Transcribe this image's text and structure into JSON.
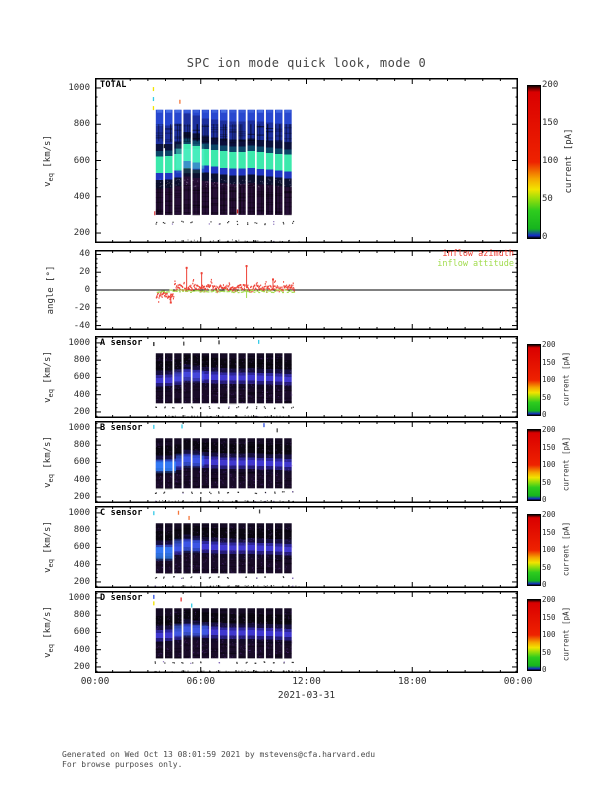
{
  "title": "SPC ion mode quick look, mode 0",
  "footer": {
    "line1": "Generated on Wed Oct 13 08:01:59 2021 by mstevens@cfa.harvard.edu",
    "line2": "For browse purposes only."
  },
  "chart_data": {
    "type": "heatmap",
    "title": "SPC ion mode quick look, mode 0",
    "x_axis": {
      "tick_labels": [
        "00:00",
        "06:00",
        "12:00",
        "18:00",
        "00:00"
      ],
      "tick_hours": [
        0,
        6,
        12,
        18,
        24
      ],
      "minor_every_h": 1,
      "range_hours": [
        0,
        24
      ],
      "date_label": "2021-03-31"
    },
    "data_span_hours": [
      3.45,
      11.25
    ],
    "n_blocks": 15,
    "colorbar": {
      "label": "current [pA]",
      "ticks": [
        0,
        50,
        100,
        150,
        200
      ],
      "range_pA": [
        0,
        200
      ],
      "stops": [
        [
          0,
          "#05030a"
        ],
        [
          0.015,
          "#1428c8"
        ],
        [
          0.06,
          "#16b41e"
        ],
        [
          0.18,
          "#2ecc1e"
        ],
        [
          0.26,
          "#9ade0a"
        ],
        [
          0.32,
          "#f2e400"
        ],
        [
          0.39,
          "#f5a800"
        ],
        [
          0.45,
          "#f06000"
        ],
        [
          0.5,
          "#ee2200"
        ],
        [
          0.96,
          "#da0000"
        ],
        [
          0.985,
          "#6a0000"
        ],
        [
          1,
          "#1a0000"
        ]
      ]
    },
    "panels": [
      {
        "id": "total",
        "label": "TOTAL",
        "kind": "spectro",
        "ylabel": {
          "pre": "v",
          "sub": "eq",
          "post": " [km/s]"
        },
        "ylim": [
          145,
          1055
        ],
        "yticks": [
          200,
          400,
          600,
          800,
          1000
        ],
        "minor_step": 50,
        "v_extent": [
          300,
          880
        ],
        "bands": [
          [
            880,
            800,
            "#2747cf"
          ],
          [
            800,
            700,
            "#1c2f9e"
          ],
          [
            700,
            662,
            "#0a103c"
          ],
          [
            662,
            632,
            "#0c4668"
          ],
          [
            632,
            540,
            "#3ce9ac"
          ],
          [
            540,
            502,
            "#2136c2"
          ],
          [
            502,
            455,
            "#0c1030"
          ],
          [
            455,
            300,
            "#260e36"
          ]
        ],
        "base_center_v": 570,
        "block_center_v": [
          560,
          562,
          575,
          628,
          618,
          602,
          596,
          590,
          586,
          586,
          590,
          584,
          580,
          575,
          570
        ],
        "hotspots": [
          {
            "t": [
              4.6,
              6.2
            ],
            "v": [
              555,
              665
            ],
            "color": "#55f2cf",
            "alpha": 0.4
          }
        ],
        "stray_marks": [
          {
            "t": 3.28,
            "v": 1005,
            "c": "#f2e400"
          },
          {
            "t": 3.28,
            "v": 950,
            "c": "#35cbe8"
          },
          {
            "t": 3.28,
            "v": 900,
            "c": "#f2e400"
          },
          {
            "t": 4.78,
            "v": 935,
            "c": "#f4763a"
          },
          {
            "t": 3.9,
            "v": 690,
            "c": "#222222"
          },
          {
            "t": 3.35,
            "v": 320,
            "c": "#e05050"
          },
          {
            "t": 8.05,
            "v": 330,
            "c": "#cc2222"
          }
        ],
        "noise": "total"
      },
      {
        "id": "angle",
        "label": "",
        "kind": "angle",
        "ylabel": {
          "pre": "angle [°]"
        },
        "ylim": [
          -45,
          45
        ],
        "yticks": [
          -40,
          -20,
          0,
          20,
          40
        ],
        "minor_step": 5,
        "span": [
          3.45,
          11.3
        ],
        "series": [
          {
            "name": "inflow azimuth",
            "color": "#ee4136",
            "pre_base": -5.5,
            "post_base": 2.8,
            "switch_t": 4.45,
            "jitter": 3.2,
            "spikes": [
              [
                5.2,
                26
              ],
              [
                6.05,
                20
              ],
              [
                8.6,
                28
              ],
              [
                10.1,
                13
              ],
              [
                4.3,
                -13
              ]
            ]
          },
          {
            "name": "inflow attitude",
            "color": "#a2dc4e",
            "base": -0.8,
            "jitter": 1.6,
            "spikes": [
              [
                8.6,
                -9
              ]
            ]
          }
        ]
      },
      {
        "id": "a",
        "label": "A sensor",
        "kind": "spectro",
        "ylabel": {
          "pre": "v",
          "sub": "eq",
          "post": " [km/s]"
        },
        "ylim": [
          130,
          1080
        ],
        "yticks": [
          200,
          400,
          600,
          800,
          1000
        ],
        "minor_step": 50,
        "v_extent": [
          300,
          880
        ],
        "bands": [
          [
            880,
            800,
            "#150b24"
          ],
          [
            800,
            690,
            "#0b0712"
          ],
          [
            690,
            640,
            "#171040"
          ],
          [
            640,
            606,
            "#2d2699"
          ],
          [
            606,
            546,
            "#3f37cf"
          ],
          [
            546,
            506,
            "#251b7a"
          ],
          [
            506,
            458,
            "#130928"
          ],
          [
            458,
            300,
            "#190b28"
          ]
        ],
        "base_center_v": 570,
        "block_center_v": [
          560,
          562,
          575,
          628,
          618,
          602,
          596,
          590,
          586,
          586,
          590,
          584,
          580,
          575,
          570
        ],
        "hotspots": [
          {
            "t": [
              4.4,
              6.2
            ],
            "v": [
              560,
              665
            ],
            "color": "#4a55e8",
            "alpha": 0.4
          }
        ],
        "stray_marks": [
          {
            "t": 3.3,
            "v": 1010,
            "c": "#222222"
          },
          {
            "t": 5.0,
            "v": 1015,
            "c": "#444444"
          },
          {
            "t": 9.25,
            "v": 1035,
            "c": "#35cbe8"
          },
          {
            "t": 7.0,
            "v": 1030,
            "c": "#333333"
          }
        ],
        "noise": "sensor"
      },
      {
        "id": "b",
        "label": "B sensor",
        "kind": "spectro",
        "ylabel": {
          "pre": "v",
          "sub": "eq",
          "post": " [km/s]"
        },
        "ylim": [
          130,
          1080
        ],
        "yticks": [
          200,
          400,
          600,
          800,
          1000
        ],
        "minor_step": 50,
        "v_extent": [
          300,
          880
        ],
        "bands": [
          [
            880,
            800,
            "#150b24"
          ],
          [
            800,
            690,
            "#0b0712"
          ],
          [
            690,
            640,
            "#171040"
          ],
          [
            640,
            606,
            "#2d2699"
          ],
          [
            606,
            546,
            "#3f37cf"
          ],
          [
            546,
            506,
            "#251b7a"
          ],
          [
            506,
            458,
            "#130928"
          ],
          [
            458,
            300,
            "#190b28"
          ]
        ],
        "base_center_v": 570,
        "block_center_v": [
          560,
          562,
          575,
          628,
          618,
          602,
          596,
          590,
          586,
          586,
          590,
          584,
          580,
          575,
          570
        ],
        "hotspots": [
          {
            "t": [
              3.45,
              4.6
            ],
            "v": [
              500,
              612
            ],
            "color": "#2f8cff",
            "alpha": 0.7
          },
          {
            "t": [
              4.6,
              6.2
            ],
            "v": [
              560,
              680
            ],
            "color": "#3a6cf8",
            "alpha": 0.45
          }
        ],
        "stray_marks": [
          {
            "t": 3.3,
            "v": 1035,
            "c": "#35cbe8"
          },
          {
            "t": 4.9,
            "v": 1040,
            "c": "#35cbe8"
          },
          {
            "t": 9.55,
            "v": 1055,
            "c": "#3050e0"
          },
          {
            "t": 10.3,
            "v": 995,
            "c": "#444444"
          }
        ],
        "noise": "sensor"
      },
      {
        "id": "c",
        "label": "C sensor",
        "kind": "spectro",
        "ylabel": {
          "pre": "v",
          "sub": "eq",
          "post": " [km/s]"
        },
        "ylim": [
          130,
          1080
        ],
        "yticks": [
          200,
          400,
          600,
          800,
          1000
        ],
        "minor_step": 50,
        "v_extent": [
          300,
          880
        ],
        "bands": [
          [
            880,
            800,
            "#150b24"
          ],
          [
            800,
            690,
            "#0b0712"
          ],
          [
            690,
            640,
            "#171040"
          ],
          [
            640,
            606,
            "#2d2699"
          ],
          [
            606,
            546,
            "#3f37cf"
          ],
          [
            546,
            506,
            "#251b7a"
          ],
          [
            506,
            458,
            "#130928"
          ],
          [
            458,
            300,
            "#190b28"
          ]
        ],
        "base_center_v": 570,
        "block_center_v": [
          560,
          562,
          575,
          628,
          618,
          602,
          596,
          590,
          586,
          586,
          590,
          584,
          580,
          575,
          570
        ],
        "hotspots": [
          {
            "t": [
              3.45,
              4.4
            ],
            "v": [
              470,
              605
            ],
            "color": "#2f8cff",
            "alpha": 0.65
          },
          {
            "t": [
              4.4,
              6.0
            ],
            "v": [
              560,
              680
            ],
            "color": "#3a6cf8",
            "alpha": 0.45
          }
        ],
        "stray_marks": [
          {
            "t": 3.3,
            "v": 1020,
            "c": "#35cbe8"
          },
          {
            "t": 4.7,
            "v": 1025,
            "c": "#f4763a"
          },
          {
            "t": 5.3,
            "v": 965,
            "c": "#f4763a"
          },
          {
            "t": 9.3,
            "v": 1040,
            "c": "#444444"
          }
        ],
        "noise": "sensor"
      },
      {
        "id": "d",
        "label": "D sensor",
        "kind": "spectro",
        "ylabel": {
          "pre": "v",
          "sub": "eq",
          "post": " [km/s]"
        },
        "ylim": [
          130,
          1080
        ],
        "yticks": [
          200,
          400,
          600,
          800,
          1000
        ],
        "minor_step": 50,
        "v_extent": [
          300,
          880
        ],
        "bands": [
          [
            880,
            800,
            "#150b24"
          ],
          [
            800,
            690,
            "#0b0712"
          ],
          [
            690,
            640,
            "#171040"
          ],
          [
            640,
            606,
            "#2d2699"
          ],
          [
            606,
            546,
            "#3f37cf"
          ],
          [
            546,
            506,
            "#251b7a"
          ],
          [
            506,
            458,
            "#130928"
          ],
          [
            458,
            300,
            "#190b28"
          ]
        ],
        "base_center_v": 570,
        "block_center_v": [
          560,
          562,
          575,
          628,
          618,
          602,
          596,
          590,
          586,
          586,
          590,
          584,
          580,
          575,
          570
        ],
        "hotspots": [
          {
            "t": [
              4.4,
              6.4
            ],
            "v": [
              565,
              680
            ],
            "color": "#3f6cf0",
            "alpha": 0.5
          }
        ],
        "stray_marks": [
          {
            "t": 3.3,
            "v": 1035,
            "c": "#3050e0"
          },
          {
            "t": 3.3,
            "v": 960,
            "c": "#f2e400"
          },
          {
            "t": 4.85,
            "v": 1005,
            "c": "#e83030"
          },
          {
            "t": 5.45,
            "v": 935,
            "c": "#35cbe8"
          }
        ],
        "noise": "sensor"
      }
    ]
  }
}
